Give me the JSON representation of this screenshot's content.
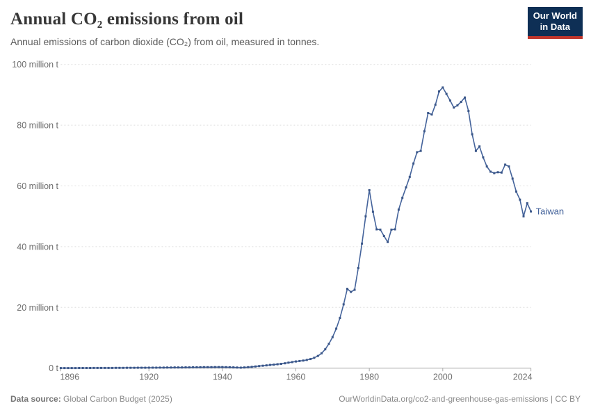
{
  "header": {
    "title": "Annual CO₂ emissions from oil",
    "subtitle": "Annual emissions of carbon dioxide (CO₂) from oil, measured in tonnes."
  },
  "logo": {
    "line1": "Our World",
    "line2": "in Data",
    "background_color": "#0E2F55",
    "accent_color": "#C0362C"
  },
  "footer": {
    "datasource_label": "Data source:",
    "datasource_value": "Global Carbon Budget (2025)",
    "credit": "OurWorldinData.org/co2-and-greenhouse-gas-emissions | CC BY"
  },
  "chart_data": {
    "type": "line",
    "title": "Annual CO₂ emissions from oil",
    "entity_label": "Taiwan",
    "unit": "million tonnes CO₂",
    "series_color": "#44639B",
    "marker_color": "#3A5688",
    "grid": "horizontal-dashed",
    "grid_color": "#dedede",
    "axis_color": "#a8a8a8",
    "tick_label_color": "#6e6e6e",
    "legend_position": "end-of-line",
    "xlim": [
      1896,
      2024
    ],
    "ylim": [
      0,
      100
    ],
    "x_ticks": [
      1896,
      1920,
      1940,
      1960,
      1980,
      2000,
      2024
    ],
    "y_ticks": [
      {
        "value": 0,
        "label": "0 t"
      },
      {
        "value": 20,
        "label": "20 million t"
      },
      {
        "value": 40,
        "label": "40 million t"
      },
      {
        "value": 60,
        "label": "60 million t"
      },
      {
        "value": 80,
        "label": "80 million t"
      },
      {
        "value": 100,
        "label": "100 million t"
      }
    ],
    "points": [
      [
        1896,
        0.02
      ],
      [
        1897,
        0.02
      ],
      [
        1898,
        0.03
      ],
      [
        1899,
        0.03
      ],
      [
        1900,
        0.03
      ],
      [
        1901,
        0.04
      ],
      [
        1902,
        0.04
      ],
      [
        1903,
        0.05
      ],
      [
        1904,
        0.05
      ],
      [
        1905,
        0.06
      ],
      [
        1906,
        0.06
      ],
      [
        1907,
        0.07
      ],
      [
        1908,
        0.07
      ],
      [
        1909,
        0.08
      ],
      [
        1910,
        0.08
      ],
      [
        1911,
        0.09
      ],
      [
        1912,
        0.1
      ],
      [
        1913,
        0.1
      ],
      [
        1914,
        0.11
      ],
      [
        1915,
        0.11
      ],
      [
        1916,
        0.12
      ],
      [
        1917,
        0.13
      ],
      [
        1918,
        0.13
      ],
      [
        1919,
        0.14
      ],
      [
        1920,
        0.15
      ],
      [
        1921,
        0.16
      ],
      [
        1922,
        0.17
      ],
      [
        1923,
        0.18
      ],
      [
        1924,
        0.19
      ],
      [
        1925,
        0.2
      ],
      [
        1926,
        0.21
      ],
      [
        1927,
        0.22
      ],
      [
        1928,
        0.23
      ],
      [
        1929,
        0.24
      ],
      [
        1930,
        0.25
      ],
      [
        1931,
        0.26
      ],
      [
        1932,
        0.27
      ],
      [
        1933,
        0.28
      ],
      [
        1934,
        0.3
      ],
      [
        1935,
        0.31
      ],
      [
        1936,
        0.32
      ],
      [
        1937,
        0.33
      ],
      [
        1938,
        0.34
      ],
      [
        1939,
        0.35
      ],
      [
        1940,
        0.35
      ],
      [
        1941,
        0.33
      ],
      [
        1942,
        0.3
      ],
      [
        1943,
        0.26
      ],
      [
        1944,
        0.2
      ],
      [
        1945,
        0.15
      ],
      [
        1946,
        0.22
      ],
      [
        1947,
        0.32
      ],
      [
        1948,
        0.42
      ],
      [
        1949,
        0.55
      ],
      [
        1950,
        0.68
      ],
      [
        1951,
        0.8
      ],
      [
        1952,
        0.92
      ],
      [
        1953,
        1.05
      ],
      [
        1954,
        1.15
      ],
      [
        1955,
        1.28
      ],
      [
        1956,
        1.42
      ],
      [
        1957,
        1.6
      ],
      [
        1958,
        1.8
      ],
      [
        1959,
        2.0
      ],
      [
        1960,
        2.2
      ],
      [
        1961,
        2.35
      ],
      [
        1962,
        2.5
      ],
      [
        1963,
        2.7
      ],
      [
        1964,
        3.0
      ],
      [
        1965,
        3.4
      ],
      [
        1966,
        4.0
      ],
      [
        1967,
        4.9
      ],
      [
        1968,
        6.2
      ],
      [
        1969,
        8.0
      ],
      [
        1970,
        10.2
      ],
      [
        1971,
        13.0
      ],
      [
        1972,
        16.5
      ],
      [
        1973,
        21.0
      ],
      [
        1974,
        26.1
      ],
      [
        1975,
        25.1
      ],
      [
        1976,
        25.8
      ],
      [
        1977,
        33.0
      ],
      [
        1978,
        41.0
      ],
      [
        1979,
        50.0
      ],
      [
        1980,
        58.6
      ],
      [
        1981,
        51.5
      ],
      [
        1982,
        45.7
      ],
      [
        1983,
        45.6
      ],
      [
        1984,
        43.5
      ],
      [
        1985,
        41.5
      ],
      [
        1986,
        45.6
      ],
      [
        1987,
        45.7
      ],
      [
        1988,
        52.2
      ],
      [
        1989,
        56.1
      ],
      [
        1990,
        59.5
      ],
      [
        1991,
        63.0
      ],
      [
        1992,
        67.4
      ],
      [
        1993,
        71.1
      ],
      [
        1994,
        71.5
      ],
      [
        1995,
        78.0
      ],
      [
        1996,
        84.0
      ],
      [
        1997,
        83.5
      ],
      [
        1998,
        86.7
      ],
      [
        1999,
        91.1
      ],
      [
        2000,
        92.4
      ],
      [
        2001,
        90.3
      ],
      [
        2002,
        88.1
      ],
      [
        2003,
        85.8
      ],
      [
        2004,
        86.5
      ],
      [
        2005,
        87.7
      ],
      [
        2006,
        89.1
      ],
      [
        2007,
        84.7
      ],
      [
        2008,
        77.0
      ],
      [
        2009,
        71.5
      ],
      [
        2010,
        73.0
      ],
      [
        2011,
        69.4
      ],
      [
        2012,
        66.4
      ],
      [
        2013,
        64.7
      ],
      [
        2014,
        64.2
      ],
      [
        2015,
        64.5
      ],
      [
        2016,
        64.4
      ],
      [
        2017,
        67.0
      ],
      [
        2018,
        66.4
      ],
      [
        2019,
        62.4
      ],
      [
        2020,
        58.1
      ],
      [
        2021,
        55.5
      ],
      [
        2022,
        50.0
      ],
      [
        2023,
        54.3
      ],
      [
        2024,
        51.6
      ]
    ]
  }
}
